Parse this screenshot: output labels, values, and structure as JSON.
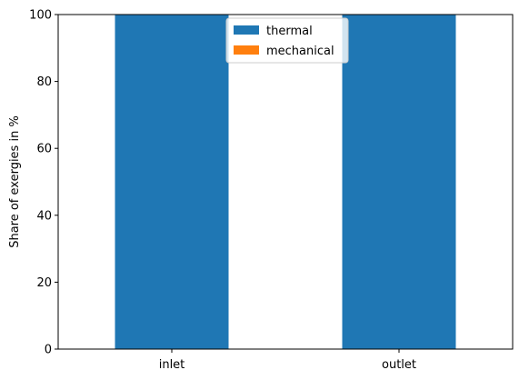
{
  "chart_data": {
    "type": "bar",
    "stacked": true,
    "categories": [
      "inlet",
      "outlet"
    ],
    "series": [
      {
        "name": "thermal",
        "values": [
          100,
          100
        ],
        "color": "#1f77b4"
      },
      {
        "name": "mechanical",
        "values": [
          0,
          0
        ],
        "color": "#ff7f0e"
      }
    ],
    "ylabel": "Share of exergies in %",
    "xlabel": "",
    "ylim": [
      0,
      100
    ],
    "yticks": [
      0,
      20,
      40,
      60,
      80,
      100
    ],
    "grid": false,
    "legend_position": "top-center"
  }
}
